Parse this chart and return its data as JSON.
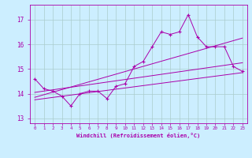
{
  "xlabel": "Windchill (Refroidissement éolien,°C)",
  "bg_color": "#cceeff",
  "grid_color": "#aacccc",
  "line_color": "#aa00aa",
  "x_data": [
    0,
    1,
    2,
    3,
    4,
    5,
    6,
    7,
    8,
    9,
    10,
    11,
    12,
    13,
    14,
    15,
    16,
    17,
    18,
    19,
    20,
    21,
    22,
    23
  ],
  "main_line": [
    14.6,
    14.2,
    14.1,
    13.9,
    13.5,
    14.0,
    14.1,
    14.1,
    13.8,
    14.3,
    14.4,
    15.1,
    15.3,
    15.9,
    16.5,
    16.4,
    16.5,
    17.2,
    16.3,
    15.9,
    15.9,
    15.9,
    15.1,
    14.9
  ],
  "reg_line1_x": [
    0,
    23
  ],
  "reg_line1_y": [
    14.05,
    15.25
  ],
  "reg_line2_x": [
    0,
    23
  ],
  "reg_line2_y": [
    13.85,
    16.25
  ],
  "reg_line3_x": [
    0,
    23
  ],
  "reg_line3_y": [
    13.75,
    14.85
  ],
  "ylim": [
    12.8,
    17.6
  ],
  "yticks": [
    13,
    14,
    15,
    16,
    17
  ],
  "xlim": [
    -0.5,
    23.5
  ]
}
